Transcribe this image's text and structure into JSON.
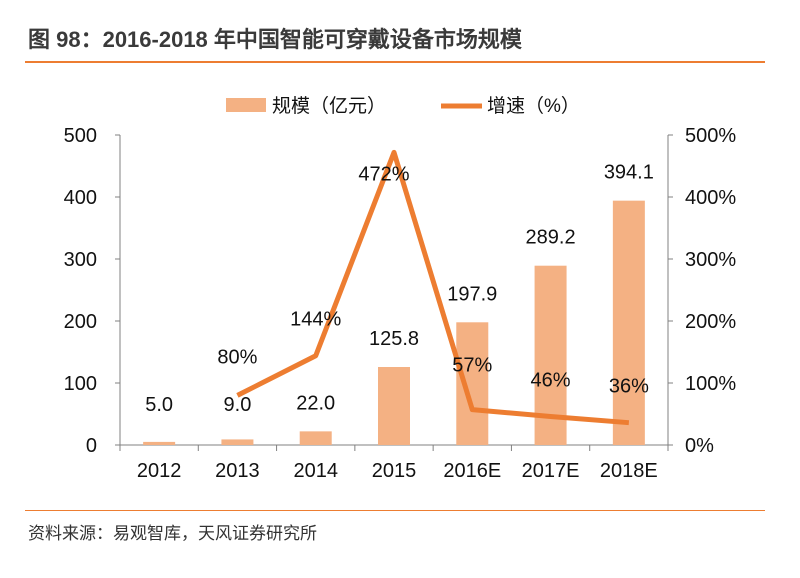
{
  "title": "图 98：2016-2018 年中国智能可穿戴设备市场规模",
  "source": "资料来源：易观智库，天风证券研究所",
  "chart_data": {
    "type": "bar+line",
    "categories": [
      "2012",
      "2013",
      "2014",
      "2015",
      "2016E",
      "2017E",
      "2018E"
    ],
    "series": [
      {
        "name": "规模（亿元）",
        "type": "bar",
        "axis": "left",
        "color": "#F4B183",
        "values": [
          5.0,
          9.0,
          22.0,
          125.8,
          197.9,
          289.2,
          394.1
        ],
        "labels": [
          "5.0",
          "9.0",
          "22.0",
          "125.8",
          "197.9",
          "289.2",
          "394.1"
        ]
      },
      {
        "name": "增速（%）",
        "type": "line",
        "axis": "right",
        "color": "#ED7D31",
        "values": [
          null,
          80,
          144,
          472,
          57,
          46,
          36
        ],
        "labels": [
          "",
          "80%",
          "144%",
          "472%",
          "57%",
          "46%",
          "36%"
        ]
      }
    ],
    "left_axis": {
      "ylim": [
        0,
        500
      ],
      "ticks": [
        "0",
        "100",
        "200",
        "300",
        "400",
        "500"
      ]
    },
    "right_axis": {
      "ylim": [
        0,
        500
      ],
      "ticks": [
        "0%",
        "100%",
        "200%",
        "300%",
        "400%",
        "500%"
      ]
    },
    "legend": "top",
    "grid": false
  }
}
